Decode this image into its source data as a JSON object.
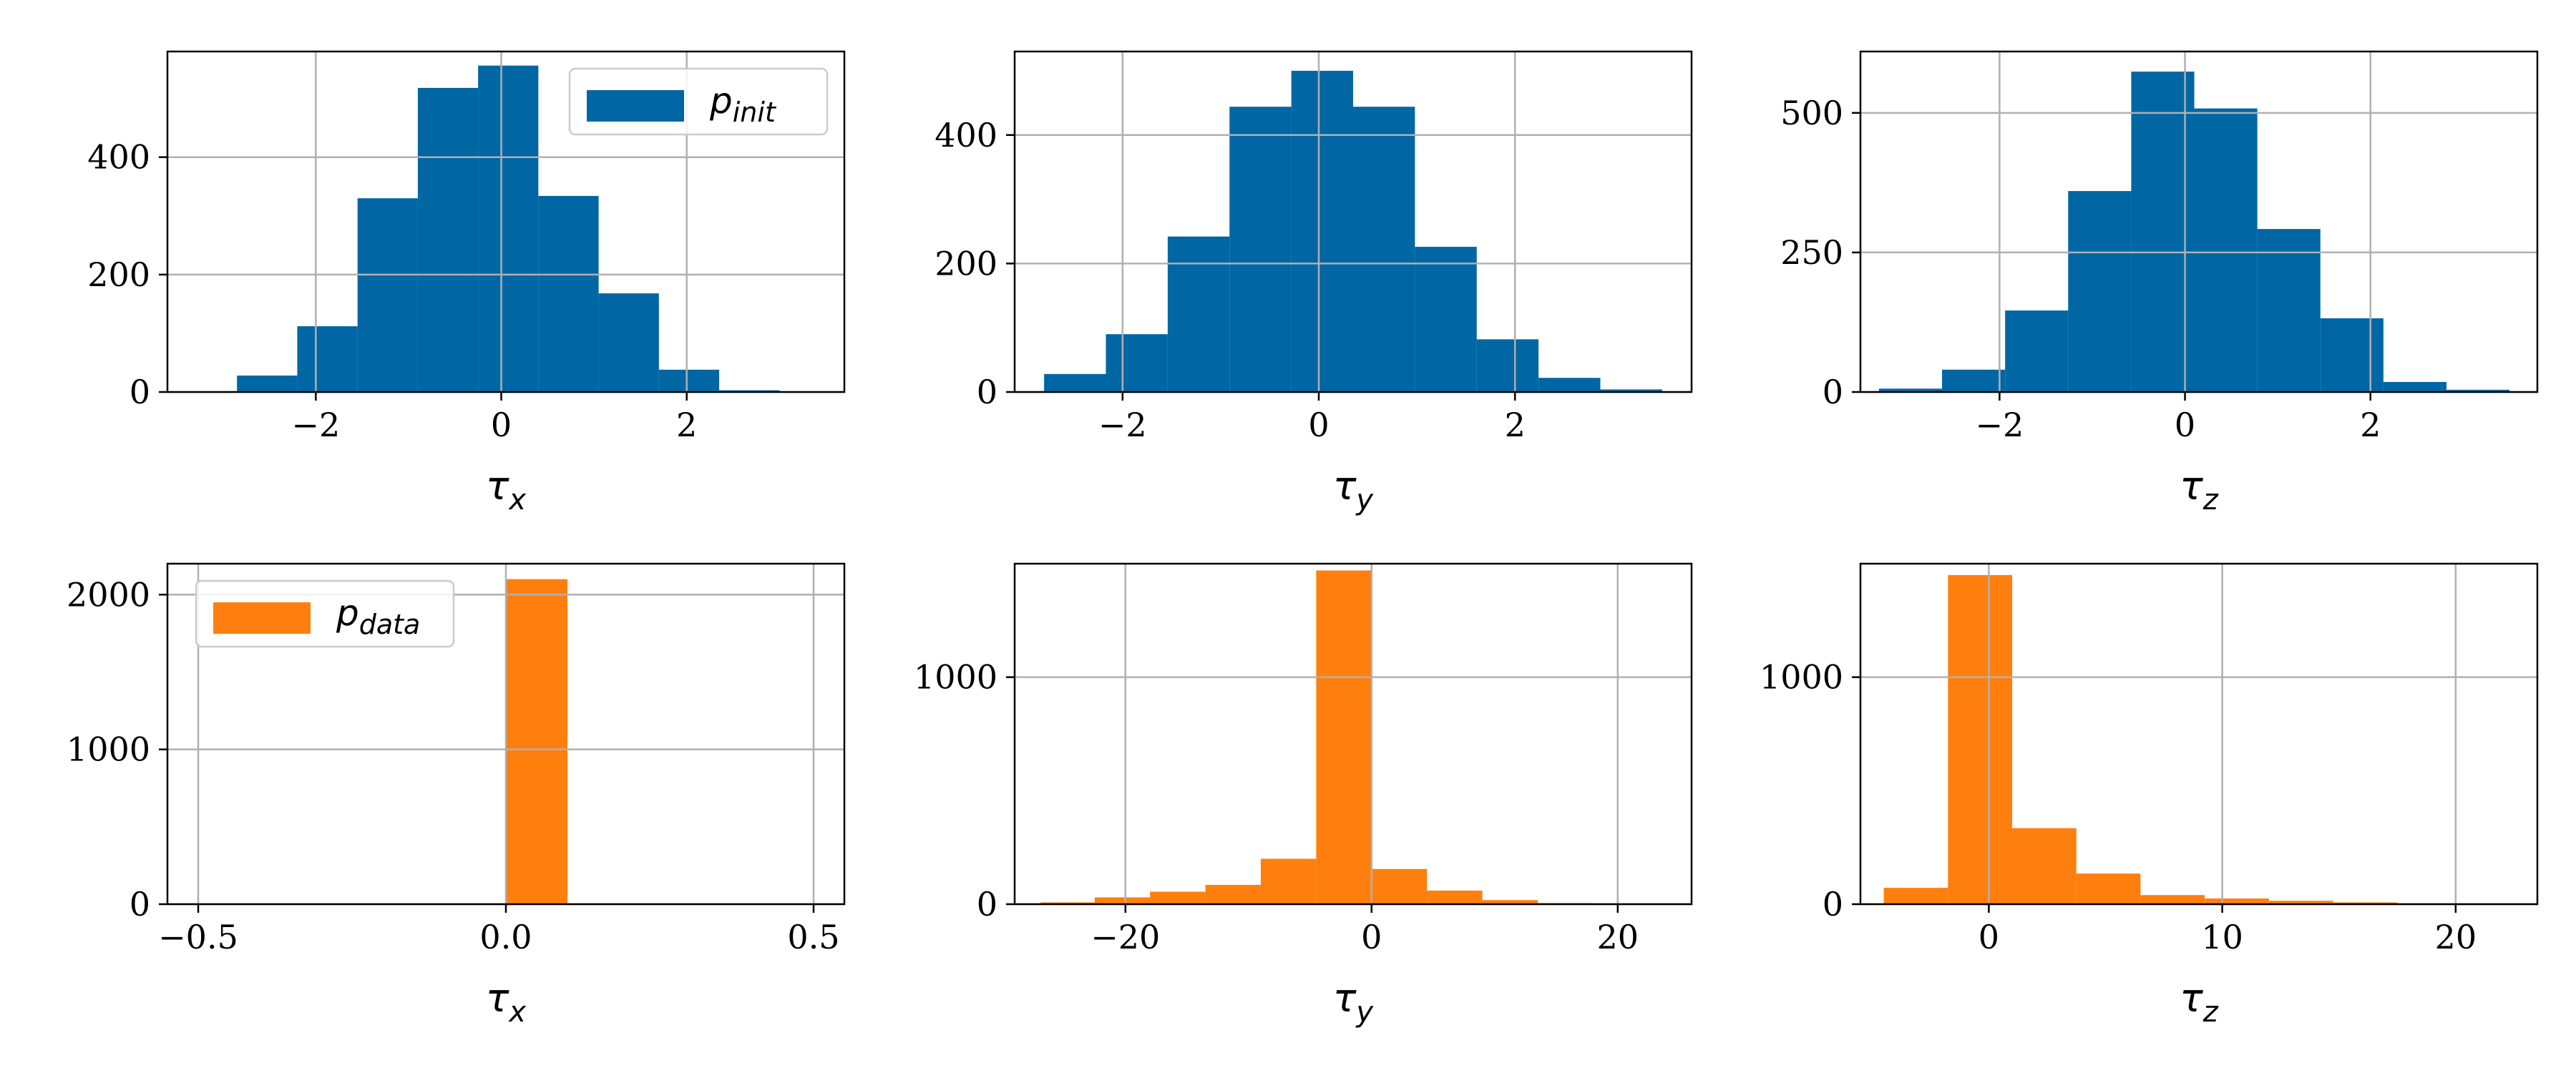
{
  "colors": {
    "init": "#0066a4",
    "data": "#ff7f0e",
    "grid": "#b0b0b0"
  },
  "chart_data": [
    {
      "type": "bar",
      "name": "top-left",
      "color": "#0066a4",
      "xlabel": "τ",
      "xlabel_sub": "x",
      "xlim": [
        -3.6,
        3.7
      ],
      "ylim": [
        0,
        580
      ],
      "xticks": [
        -2,
        0,
        2
      ],
      "xtick_labels": [
        "−2",
        "0",
        "2"
      ],
      "yticks": [
        0,
        200,
        400
      ],
      "ytick_labels": [
        "0",
        "200",
        "400"
      ],
      "bin_edges": [
        -2.85,
        -2.2,
        -1.55,
        -0.9,
        -0.25,
        0.4,
        1.05,
        1.7,
        2.35,
        3.0,
        3.65
      ],
      "values": [
        28,
        112,
        330,
        518,
        556,
        334,
        168,
        38,
        3,
        1
      ],
      "legend": {
        "label": "p",
        "label_sub": "init",
        "loc": "upper right"
      }
    },
    {
      "type": "bar",
      "name": "top-middle",
      "color": "#0066a4",
      "xlabel": "τ",
      "xlabel_sub": "y",
      "xlim": [
        -3.1,
        3.8
      ],
      "ylim": [
        0,
        530
      ],
      "xticks": [
        -2,
        0,
        2
      ],
      "xtick_labels": [
        "−2",
        "0",
        "2"
      ],
      "yticks": [
        0,
        200,
        400
      ],
      "ytick_labels": [
        "0",
        "200",
        "400"
      ],
      "bin_edges": [
        -2.8,
        -2.17,
        -1.54,
        -0.91,
        -0.28,
        0.35,
        0.98,
        1.61,
        2.24,
        2.87,
        3.5
      ],
      "values": [
        28,
        90,
        242,
        444,
        500,
        444,
        226,
        82,
        22,
        4
      ]
    },
    {
      "type": "bar",
      "name": "top-right",
      "color": "#0066a4",
      "xlabel": "τ",
      "xlabel_sub": "z",
      "xlim": [
        -3.5,
        3.8
      ],
      "ylim": [
        0,
        610
      ],
      "xticks": [
        -2,
        0,
        2
      ],
      "xtick_labels": [
        "−2",
        "0",
        "2"
      ],
      "yticks": [
        0,
        250,
        500
      ],
      "ytick_labels": [
        "0",
        "250",
        "500"
      ],
      "bin_edges": [
        -3.3,
        -2.62,
        -1.94,
        -1.26,
        -0.58,
        0.1,
        0.78,
        1.46,
        2.14,
        2.82,
        3.5
      ],
      "values": [
        6,
        40,
        146,
        360,
        574,
        508,
        292,
        132,
        18,
        4
      ]
    },
    {
      "type": "bar",
      "name": "bottom-left",
      "color": "#ff7f0e",
      "xlabel": "τ",
      "xlabel_sub": "x",
      "xlim": [
        -0.55,
        0.55
      ],
      "ylim": [
        0,
        2200
      ],
      "xticks": [
        -0.5,
        0.0,
        0.5
      ],
      "xtick_labels": [
        "−0.5",
        "0.0",
        "0.5"
      ],
      "yticks": [
        0,
        1000,
        2000
      ],
      "ytick_labels": [
        "0",
        "1000",
        "2000"
      ],
      "bin_edges": [
        0.0,
        0.1
      ],
      "values": [
        2100
      ],
      "legend": {
        "label": "p",
        "label_sub": "data",
        "loc": "upper left"
      }
    },
    {
      "type": "bar",
      "name": "bottom-middle",
      "color": "#ff7f0e",
      "xlabel": "τ",
      "xlabel_sub": "y",
      "xlim": [
        -29,
        26
      ],
      "ylim": [
        0,
        1500
      ],
      "xticks": [
        -20,
        0,
        20
      ],
      "xtick_labels": [
        "−20",
        "0",
        "20"
      ],
      "yticks": [
        0,
        1000
      ],
      "ytick_labels": [
        "0",
        "1000"
      ],
      "bin_edges": [
        -26.9,
        -22.5,
        -18.0,
        -13.5,
        -9.0,
        -4.5,
        0.0,
        4.5,
        9.0,
        13.5,
        18.0,
        22.5
      ],
      "values": [
        8,
        30,
        55,
        85,
        200,
        1470,
        155,
        60,
        18,
        5,
        1
      ]
    },
    {
      "type": "bar",
      "name": "bottom-right",
      "color": "#ff7f0e",
      "xlabel": "τ",
      "xlabel_sub": "z",
      "xlim": [
        -5.5,
        23.5
      ],
      "ylim": [
        0,
        1500
      ],
      "xticks": [
        0,
        10,
        20
      ],
      "xtick_labels": [
        "0",
        "10",
        "20"
      ],
      "yticks": [
        0,
        1000
      ],
      "ytick_labels": [
        "0",
        "1000"
      ],
      "bin_edges": [
        -4.5,
        -1.75,
        1.0,
        3.75,
        6.5,
        9.25,
        12.0,
        14.75,
        17.5,
        20.25,
        23.0
      ],
      "values": [
        72,
        1450,
        335,
        135,
        40,
        25,
        15,
        8,
        2,
        1
      ]
    }
  ]
}
